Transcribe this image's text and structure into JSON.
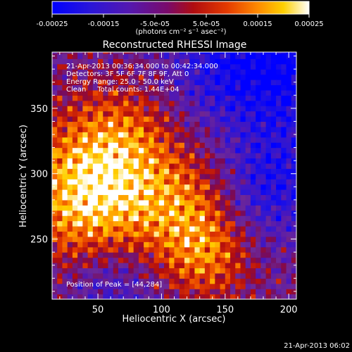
{
  "colorbar": {
    "tick_labels": [
      "-0.00025",
      "-0.00015",
      "-5.0e-05",
      "5.0e-05",
      "0.00015",
      "0.00025"
    ],
    "tick_values": [
      -0.00025,
      -0.00015,
      -5e-05,
      5e-05,
      0.00015,
      0.00025
    ],
    "range": [
      -0.00025,
      0.00025
    ],
    "unit_label": "(photons cm⁻² s⁻¹ asec⁻²)"
  },
  "chart_data": {
    "type": "heatmap",
    "title": "Reconstructed RHESSI Image",
    "xlabel": "Heliocentric X (arcsec)",
    "ylabel": "Heliocentric Y (arcsec)",
    "xlim": [
      14,
      206
    ],
    "ylim": [
      204,
      393
    ],
    "x_ticks": [
      50,
      100,
      150,
      200
    ],
    "y_ticks": [
      250,
      300,
      350
    ],
    "grid": false,
    "colormap": "rainbow-blue-to-yellow",
    "peak_position": [
      44,
      284
    ],
    "pixel_size_arcsec": 4,
    "annotations": {
      "time_range": "21-Apr-2013 00:36:34.000 to 00:42:34.000",
      "detectors": "Detectors: 3F 5F 6F 7F 8F 9F, Att 0",
      "energy": "Energy Range: 25.0 - 50.0 keV",
      "clean": "Clean     Total counts: 1.44E+04",
      "peak": "Position of Peak = [44,284]"
    }
  },
  "footer": {
    "timestamp": "21-Apr-2013 06:02"
  },
  "colors": {
    "background": "#000000",
    "foreground": "#ffffff"
  }
}
